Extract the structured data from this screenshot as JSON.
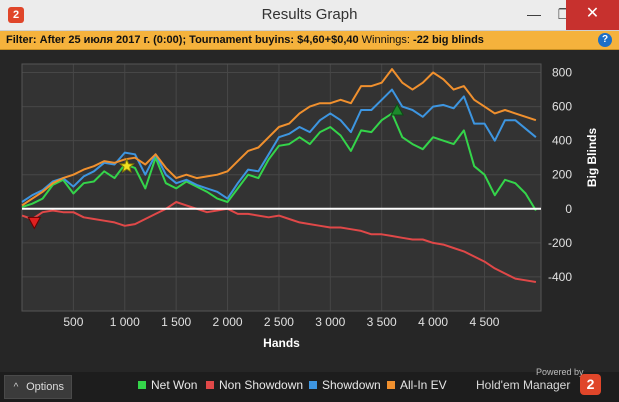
{
  "window": {
    "title": "Results Graph",
    "app_icon": "holdem-manager-2-icon",
    "minimize_glyph": "—",
    "maximize_glyph": "❐",
    "close_glyph": "✕"
  },
  "filter": {
    "label": "Filter:",
    "text": "After 25 июля 2017 г. (0:00); Tournament buyins: $4,60+$0,40",
    "winnings_label": "Winnings:",
    "winnings_value": "-22 big blinds",
    "help_glyph": "?"
  },
  "options_button": {
    "chevron": "^",
    "label": "Options"
  },
  "legend": [
    {
      "label": "Net Won",
      "color": "#34d44a"
    },
    {
      "label": "Non Showdown",
      "color": "#e04848"
    },
    {
      "label": "Showdown",
      "color": "#3d95e0"
    },
    {
      "label": "All-In EV",
      "color": "#f0902e"
    }
  ],
  "branding": {
    "powered": "Powered by",
    "name": "Hold'em Manager",
    "logo": "2"
  },
  "chart_data": {
    "type": "line",
    "xlabel": "Hands",
    "ylabel": "Big Blinds",
    "xlim": [
      0,
      5050
    ],
    "ylim": [
      -600,
      850
    ],
    "x_ticks": [
      500,
      1000,
      1500,
      2000,
      2500,
      3000,
      3500,
      4000,
      4500
    ],
    "x_tick_labels": [
      "500",
      "1 000",
      "1 500",
      "2 000",
      "2 500",
      "3 000",
      "3 500",
      "4 000",
      "4 500"
    ],
    "y_ticks": [
      800,
      600,
      400,
      200,
      0,
      -200,
      -400
    ],
    "y_tick_labels": [
      "800",
      "600",
      "400",
      "200",
      "0",
      "-200",
      "-400"
    ],
    "grid": true,
    "zero_line": true,
    "series": [
      {
        "name": "Net Won",
        "color": "#34d44a",
        "x": [
          0,
          100,
          200,
          300,
          400,
          500,
          600,
          700,
          800,
          900,
          1000,
          1100,
          1200,
          1300,
          1400,
          1500,
          1600,
          1700,
          1800,
          1900,
          2000,
          2100,
          2200,
          2300,
          2400,
          2500,
          2600,
          2700,
          2800,
          2900,
          3000,
          3100,
          3200,
          3300,
          3400,
          3500,
          3600,
          3700,
          3800,
          3900,
          4000,
          4100,
          4200,
          4300,
          4400,
          4500,
          4600,
          4700,
          4800,
          4900,
          5000
        ],
        "y": [
          10,
          30,
          60,
          140,
          170,
          90,
          150,
          160,
          220,
          180,
          260,
          240,
          120,
          300,
          150,
          120,
          160,
          130,
          100,
          60,
          40,
          120,
          200,
          180,
          290,
          370,
          380,
          420,
          380,
          450,
          480,
          430,
          340,
          460,
          450,
          520,
          560,
          420,
          380,
          350,
          420,
          400,
          380,
          460,
          250,
          200,
          80,
          170,
          150,
          90,
          -10
        ]
      },
      {
        "name": "Non Showdown",
        "color": "#e04848",
        "x": [
          0,
          100,
          200,
          300,
          400,
          500,
          600,
          700,
          800,
          900,
          1000,
          1100,
          1200,
          1300,
          1400,
          1500,
          1600,
          1700,
          1800,
          1900,
          2000,
          2100,
          2200,
          2300,
          2400,
          2500,
          2600,
          2700,
          2800,
          2900,
          3000,
          3100,
          3200,
          3300,
          3400,
          3500,
          3600,
          3700,
          3800,
          3900,
          4000,
          4100,
          4200,
          4300,
          4400,
          4500,
          4600,
          4700,
          4800,
          4900,
          5000
        ],
        "y": [
          -40,
          -60,
          -20,
          -10,
          -20,
          -20,
          -50,
          -60,
          -70,
          -80,
          -100,
          -90,
          -60,
          -30,
          0,
          40,
          20,
          0,
          -20,
          -10,
          0,
          -30,
          -30,
          -40,
          -50,
          -40,
          -60,
          -80,
          -90,
          -100,
          -110,
          -110,
          -120,
          -130,
          -150,
          -150,
          -160,
          -170,
          -180,
          -180,
          -200,
          -210,
          -230,
          -250,
          -280,
          -310,
          -350,
          -380,
          -410,
          -420,
          -430
        ]
      },
      {
        "name": "Showdown",
        "color": "#3d95e0",
        "x": [
          0,
          100,
          200,
          300,
          400,
          500,
          600,
          700,
          800,
          900,
          1000,
          1100,
          1200,
          1300,
          1400,
          1500,
          1600,
          1700,
          1800,
          1900,
          2000,
          2100,
          2200,
          2300,
          2400,
          2500,
          2600,
          2700,
          2800,
          2900,
          3000,
          3100,
          3200,
          3300,
          3400,
          3500,
          3600,
          3700,
          3800,
          3900,
          4000,
          4100,
          4200,
          4300,
          4400,
          4500,
          4600,
          4700,
          4800,
          4900,
          5000
        ],
        "y": [
          40,
          80,
          110,
          160,
          180,
          130,
          190,
          220,
          270,
          260,
          330,
          320,
          200,
          320,
          200,
          150,
          170,
          140,
          120,
          100,
          60,
          150,
          230,
          220,
          320,
          420,
          440,
          480,
          450,
          520,
          560,
          520,
          450,
          580,
          580,
          640,
          700,
          600,
          580,
          540,
          600,
          610,
          590,
          660,
          500,
          500,
          400,
          520,
          520,
          470,
          420
        ]
      },
      {
        "name": "All-In EV",
        "color": "#f0902e",
        "x": [
          0,
          100,
          200,
          300,
          400,
          500,
          600,
          700,
          800,
          900,
          1000,
          1100,
          1200,
          1300,
          1400,
          1500,
          1600,
          1700,
          1800,
          1900,
          2000,
          2100,
          2200,
          2300,
          2400,
          2500,
          2600,
          2700,
          2800,
          2900,
          3000,
          3100,
          3200,
          3300,
          3400,
          3500,
          3600,
          3700,
          3800,
          3900,
          4000,
          4100,
          4200,
          4300,
          4400,
          4500,
          4600,
          4700,
          4800,
          4900,
          5000
        ],
        "y": [
          20,
          60,
          100,
          150,
          180,
          200,
          230,
          250,
          280,
          270,
          290,
          300,
          260,
          320,
          240,
          180,
          200,
          180,
          190,
          200,
          220,
          280,
          340,
          360,
          420,
          480,
          500,
          560,
          600,
          620,
          620,
          640,
          620,
          720,
          720,
          740,
          820,
          740,
          700,
          740,
          800,
          760,
          700,
          720,
          640,
          600,
          560,
          580,
          560,
          540,
          520
        ]
      }
    ],
    "markers": [
      {
        "label": "down-triangle",
        "x": 120,
        "y": -80,
        "color": "#e02020"
      },
      {
        "label": "star",
        "x": 1020,
        "y": 250,
        "color": "#f0e020"
      },
      {
        "label": "up-triangle",
        "x": 3650,
        "y": 580,
        "color": "#1d8a2c"
      }
    ]
  }
}
